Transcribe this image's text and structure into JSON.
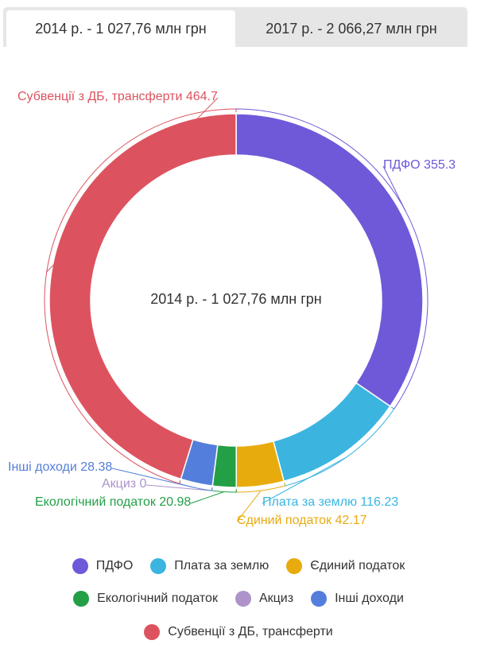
{
  "tabs": [
    {
      "label": "2014 р. - 1 027,76 млн грн",
      "active": true
    },
    {
      "label": "2017 р. - 2 066,27 млн грн",
      "active": false
    }
  ],
  "chart_data": {
    "type": "pie",
    "donut": true,
    "title": "2014 р. - 1 027,76 млн грн",
    "slices": [
      {
        "name": "ПДФО",
        "value": 355.3,
        "label": "ПДФО 355.3",
        "color": "#6f59d9"
      },
      {
        "name": "Плата за землю",
        "value": 116.23,
        "label": "Плата за землю 116.23",
        "color": "#3bb5e0"
      },
      {
        "name": "Єдиний податок",
        "value": 42.17,
        "label": "Єдиний податок 42.17",
        "color": "#e8ab0e"
      },
      {
        "name": "Екологічний податок",
        "value": 20.98,
        "label": "Екологічний податок 20.98",
        "color": "#239f46"
      },
      {
        "name": "Акциз",
        "value": 0,
        "label": "Акциз 0",
        "color": "#ad93ca"
      },
      {
        "name": "Інші доходи",
        "value": 28.38,
        "label": "Інші доходи 28.38",
        "color": "#537edb"
      },
      {
        "name": "Субвенції з ДБ, трансферти",
        "value": 464.7,
        "label": "Субвенції з ДБ, трансферти 464.7",
        "color": "#dc535f"
      }
    ],
    "legend_position": "bottom"
  }
}
